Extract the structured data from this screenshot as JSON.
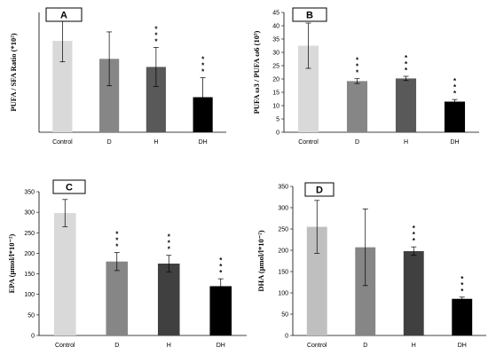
{
  "chart_data": [
    {
      "type": "bar",
      "panel_label": "A",
      "categories": [
        "Control",
        "D",
        "H",
        "DH"
      ],
      "values": [
        305,
        245,
        218,
        117
      ],
      "errors": [
        70,
        90,
        65,
        65
      ],
      "significance": [
        "",
        "",
        "* * *",
        "* * *"
      ],
      "ylabel": "PUFA / SFA Ratio (*10²)",
      "ylim": [
        0,
        400
      ],
      "yticks": [],
      "colors": [
        "#d9d9d9",
        "#868686",
        "#595959",
        "#000000"
      ],
      "grid": false
    },
    {
      "type": "bar",
      "panel_label": "B",
      "categories": [
        "Control",
        "D",
        "H",
        "DH"
      ],
      "values": [
        32.5,
        19.2,
        20.2,
        11.5
      ],
      "errors": [
        8.5,
        0.9,
        0.8,
        0.8
      ],
      "significance": [
        "",
        "* * *",
        "* * *",
        "* * *"
      ],
      "ylabel": "PUFA ω3 / PUFA ω6 (10³)",
      "ylim": [
        0,
        45
      ],
      "yticks": [
        "0",
        "5",
        "10",
        "15",
        "20",
        "25",
        "30",
        "35",
        "40",
        "45"
      ],
      "colors": [
        "#d9d9d9",
        "#868686",
        "#595959",
        "#000000"
      ],
      "grid": false
    },
    {
      "type": "bar",
      "panel_label": "C",
      "categories": [
        "Control",
        "D",
        "H",
        "DH"
      ],
      "values": [
        298,
        180,
        175,
        120
      ],
      "errors": [
        33,
        22,
        20,
        18
      ],
      "significance": [
        "",
        "* * *",
        "* * *",
        "* * *"
      ],
      "ylabel": "EPA (μmol/l*10⁻²)",
      "ylim": [
        0,
        350
      ],
      "yticks": [
        "0",
        "50",
        "100",
        "150",
        "200",
        "250",
        "300",
        "350"
      ],
      "colors": [
        "#d9d9d9",
        "#868686",
        "#404040",
        "#000000"
      ],
      "grid": false
    },
    {
      "type": "bar",
      "panel_label": "D",
      "categories": [
        "Control",
        "D",
        "H",
        "DH"
      ],
      "values": [
        255,
        207,
        198,
        86
      ],
      "errors": [
        62,
        90,
        10,
        4
      ],
      "significance": [
        "",
        "",
        "* * *",
        "* * *"
      ],
      "ylabel": "DHA (μmol/l*10⁻²)",
      "ylim": [
        0,
        350
      ],
      "yticks": [
        "0",
        "50",
        "100",
        "150",
        "200",
        "250",
        "300",
        "350"
      ],
      "colors": [
        "#bfbfbf",
        "#868686",
        "#404040",
        "#000000"
      ],
      "grid": false
    }
  ]
}
